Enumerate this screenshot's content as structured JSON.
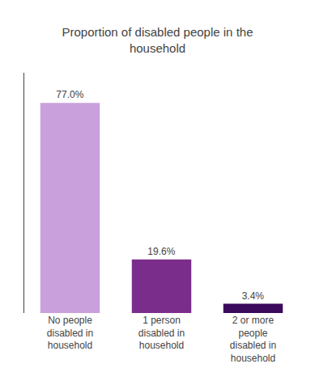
{
  "chart_data": {
    "type": "bar",
    "title": "Proportion of disabled people in the\nhousehold",
    "categories": [
      "No people\ndisabled in\nhousehold",
      "1 person\ndisabled in\nhousehold",
      "2 or more\npeople\ndisabled in\nhousehold"
    ],
    "values": [
      77.0,
      19.6,
      3.4
    ],
    "value_labels": [
      "77.0%",
      "19.6%",
      "3.4%"
    ],
    "colors": [
      "#c9a0dc",
      "#7b2d8b",
      "#3b0a5c"
    ],
    "ylim": [
      0,
      88
    ],
    "yticks": [],
    "tick_labels": "x",
    "data_labels": true,
    "grid": false
  }
}
